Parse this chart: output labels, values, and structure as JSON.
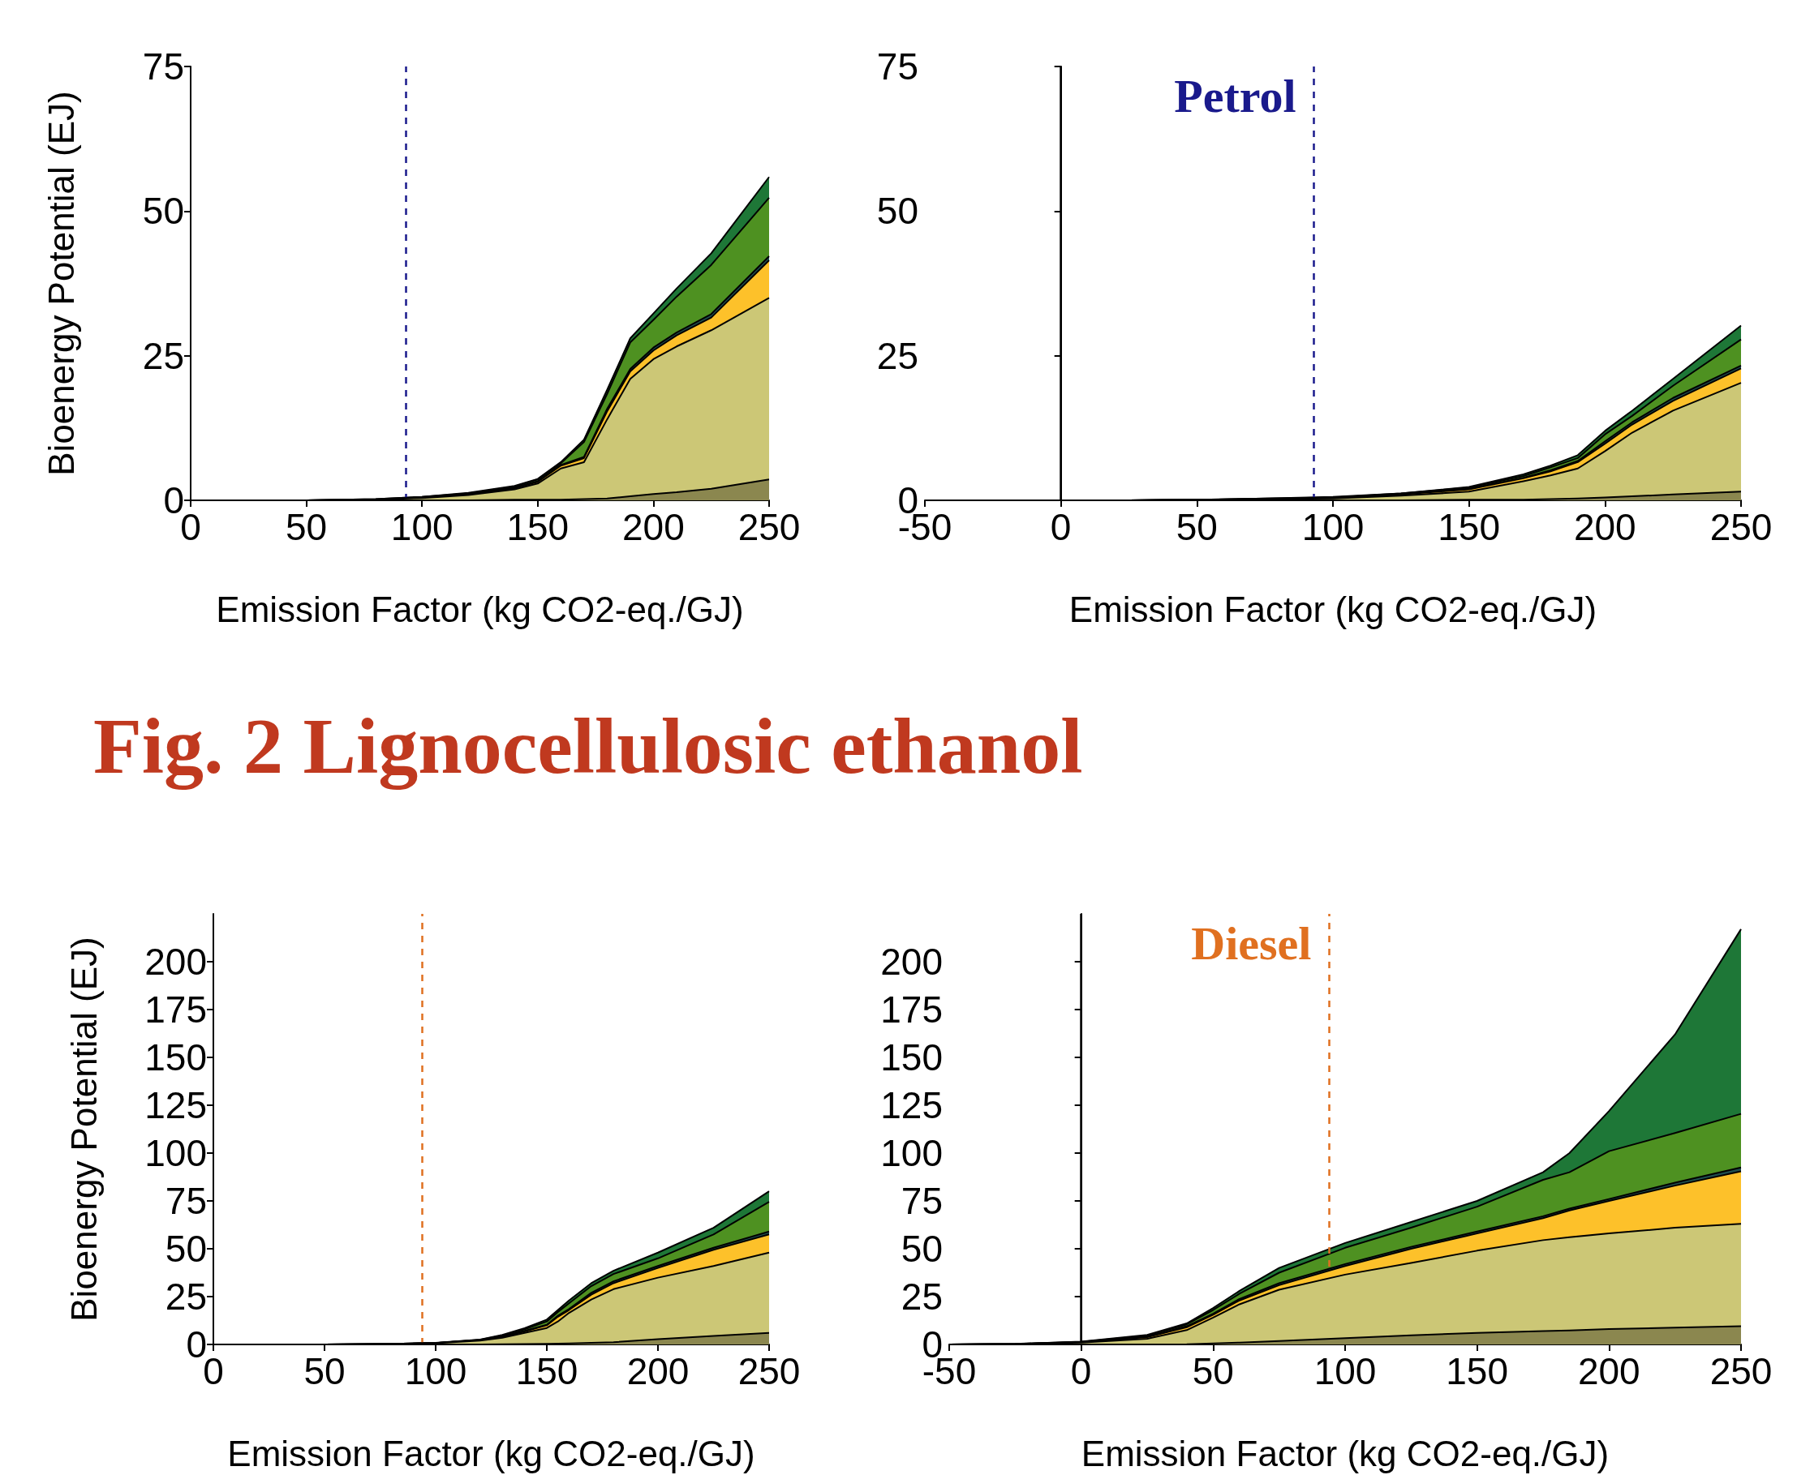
{
  "chart_data": [
    {
      "type": "area",
      "stacked": true,
      "xlabel": "Emission Factor (kg CO2-eq./GJ)",
      "ylabel": "Bioenergy Potential (EJ)",
      "xlim": [
        0,
        250
      ],
      "xticks": [
        0,
        50,
        100,
        150,
        200,
        250
      ],
      "ylim": [
        0,
        75
      ],
      "yticks": [
        0,
        25,
        50,
        75
      ],
      "x": [
        0,
        50,
        80,
        100,
        120,
        140,
        150,
        160,
        170,
        180,
        190,
        200,
        210,
        225,
        250
      ],
      "series": [
        {
          "color": "#8b874f",
          "values": [
            0,
            0,
            0,
            0,
            0,
            0.1,
            0.1,
            0.1,
            0.2,
            0.3,
            0.7,
            1.1,
            1.4,
            2.0,
            3.6
          ]
        },
        {
          "color": "#ccc776",
          "values": [
            0,
            0,
            0.1,
            0.4,
            0.9,
            1.8,
            2.8,
            5.4,
            6.4,
            13.7,
            20.3,
            23.3,
            25.2,
            27.4,
            31.4
          ]
        },
        {
          "color": "#fdc12a",
          "values": [
            0,
            0,
            0,
            0.1,
            0.1,
            0.2,
            0.3,
            0.5,
            0.7,
            1.4,
            1.3,
            1.5,
            1.9,
            2.2,
            6.5
          ]
        },
        {
          "color": "#1f4f4f",
          "values": [
            0,
            0,
            0,
            0,
            0.1,
            0.1,
            0.1,
            0.1,
            0.2,
            0.4,
            0.4,
            0.5,
            0.5,
            0.6,
            0.7
          ]
        },
        {
          "color": "#4e9121",
          "values": [
            0,
            0,
            0.1,
            0.1,
            0.1,
            0.2,
            0.3,
            0.3,
            2.6,
            2.6,
            4.6,
            4.8,
            6.2,
            8.5,
            10.1
          ]
        },
        {
          "color": "#1e7737",
          "values": [
            0,
            0,
            0,
            0,
            0.1,
            0.1,
            0.1,
            0.2,
            0.4,
            0.7,
            0.7,
            1.1,
            1.4,
            2.0,
            3.6
          ]
        }
      ],
      "ref_lines": [
        {
          "axis": "x",
          "value": 93,
          "color": "#1a1a8c",
          "line_style": "dashed"
        }
      ]
    },
    {
      "type": "area",
      "stacked": true,
      "xlabel": "Emission Factor (kg CO2-eq./GJ)",
      "xlim": [
        -50,
        250
      ],
      "xticks": [
        -50,
        0,
        50,
        100,
        150,
        200,
        250
      ],
      "ylim": [
        0,
        75
      ],
      "yticks": [
        0,
        25,
        50,
        75
      ],
      "x": [
        -50,
        0,
        25,
        50,
        75,
        100,
        125,
        150,
        170,
        180,
        190,
        200,
        210,
        225,
        250
      ],
      "series": [
        {
          "color": "#8b874f",
          "values": [
            0,
            0,
            0,
            0,
            0,
            0,
            0,
            0.1,
            0.1,
            0.2,
            0.3,
            0.5,
            0.7,
            1.0,
            1.5
          ]
        },
        {
          "color": "#ccc776",
          "values": [
            0,
            0,
            0,
            0.1,
            0.2,
            0.3,
            0.8,
            1.4,
            3.2,
            4.1,
            5.2,
            8.0,
            11.0,
            14.5,
            18.8
          ]
        },
        {
          "color": "#fdc12a",
          "values": [
            0,
            0,
            0,
            0,
            0,
            0.1,
            0.2,
            0.4,
            0.5,
            0.7,
            1.1,
            1.3,
            1.4,
            1.7,
            2.5
          ]
        },
        {
          "color": "#1f4f4f",
          "values": [
            0,
            0,
            0,
            0,
            0,
            0.1,
            0.1,
            0.1,
            0.1,
            0.2,
            0.2,
            0.4,
            0.4,
            0.5,
            0.5
          ]
        },
        {
          "color": "#4e9121",
          "values": [
            0,
            0,
            0,
            0,
            0.1,
            0,
            0.1,
            0.2,
            0.3,
            0.5,
            0.5,
            1.2,
            1.1,
            2.1,
            4.5
          ]
        },
        {
          "color": "#1e7737",
          "values": [
            0,
            0,
            0,
            0,
            0,
            0.1,
            0,
            0.1,
            0.3,
            0.3,
            0.5,
            0.6,
            0.9,
            1.2,
            2.4
          ]
        }
      ],
      "ref_lines": [
        {
          "axis": "x",
          "value": 0,
          "color": "#000000",
          "line_style": "solid"
        },
        {
          "axis": "x",
          "value": 93,
          "label": "Petrol",
          "color": "#1a1a8c",
          "line_style": "dashed"
        }
      ]
    },
    {
      "type": "area",
      "stacked": true,
      "title": "Fig. 2 Lignocellulosic ethanol",
      "xlabel": "Emission Factor (kg CO2-eq./GJ)",
      "ylabel": "Bioenergy Potential (EJ)",
      "xlim": [
        0,
        250
      ],
      "xticks": [
        0,
        50,
        100,
        150,
        200,
        250
      ],
      "ylim": [
        0,
        225
      ],
      "yticks": [
        0,
        25,
        50,
        75,
        100,
        125,
        150,
        175,
        200
      ],
      "x": [
        0,
        50,
        75,
        100,
        120,
        130,
        140,
        150,
        155,
        160,
        170,
        180,
        200,
        225,
        250
      ],
      "series": [
        {
          "color": "#8b874f",
          "values": [
            0,
            0,
            0,
            0,
            0,
            0.1,
            0.2,
            0.3,
            0.4,
            0.5,
            0.8,
            1.2,
            2.8,
            4.5,
            6
          ]
        },
        {
          "color": "#ccc776",
          "values": [
            0,
            0,
            0.2,
            0.6,
            2,
            3.4,
            5.8,
            8.3,
            11.6,
            16,
            22.7,
            27.7,
            32.1,
            36.5,
            42
          ]
        },
        {
          "color": "#fdc12a",
          "values": [
            0,
            0,
            0,
            0.1,
            0.2,
            0.5,
            0.8,
            1.4,
            2.5,
            1.5,
            2.5,
            3.1,
            5.1,
            8.5,
            9.5
          ]
        },
        {
          "color": "#1f4f4f",
          "values": [
            0,
            0,
            0,
            0,
            0.1,
            0.2,
            0.3,
            0.3,
            0.5,
            0.5,
            1,
            1,
            1,
            1,
            1.5
          ]
        },
        {
          "color": "#4e9121",
          "values": [
            0,
            0,
            0,
            0,
            0.1,
            0.5,
            0.8,
            1.7,
            2,
            3,
            3.5,
            3.8,
            4,
            7,
            15.5
          ]
        },
        {
          "color": "#1e7737",
          "values": [
            0,
            0,
            0,
            0.1,
            0.1,
            0.3,
            0.6,
            1,
            1,
            1.5,
            1.5,
            1.7,
            3,
            3.5,
            5.5
          ]
        }
      ],
      "ref_lines": [
        {
          "axis": "x",
          "value": 94,
          "color": "#e07020",
          "line_style": "dashed"
        }
      ]
    },
    {
      "type": "area",
      "stacked": true,
      "xlabel": "Emission Factor (kg CO2-eq./GJ)",
      "xlim": [
        -50,
        250
      ],
      "xticks": [
        -50,
        0,
        50,
        100,
        150,
        200,
        250
      ],
      "ylim": [
        0,
        225
      ],
      "yticks": [
        0,
        25,
        50,
        75,
        100,
        125,
        150,
        175,
        200
      ],
      "x": [
        -50,
        -25,
        0,
        25,
        40,
        50,
        60,
        75,
        100,
        125,
        150,
        175,
        185,
        200,
        225,
        250
      ],
      "series": [
        {
          "color": "#8b874f",
          "values": [
            0,
            0,
            0,
            0,
            0.1,
            0.5,
            1,
            1.8,
            3.3,
            4.8,
            6,
            7,
            7.3,
            8,
            8.8,
            9.5
          ]
        },
        {
          "color": "#ccc776",
          "values": [
            0,
            0.2,
            1,
            3,
            7.4,
            13.5,
            20,
            26.8,
            33.2,
            37.8,
            43,
            47.5,
            48.7,
            50,
            52.2,
            53.5
          ]
        },
        {
          "color": "#fdc12a",
          "values": [
            0,
            0,
            0.2,
            0.8,
            1.5,
            1.5,
            2,
            2.4,
            4.5,
            7.4,
            9,
            11.5,
            14,
            17,
            22,
            27.5
          ]
        },
        {
          "color": "#1f4f4f",
          "values": [
            0,
            0,
            0.1,
            0.2,
            0.5,
            0.5,
            0.8,
            1,
            1,
            1,
            1,
            1,
            1,
            1,
            1.5,
            2
          ]
        },
        {
          "color": "#4e9121",
          "values": [
            0,
            0.1,
            0.1,
            0.6,
            1,
            2,
            2.7,
            5.5,
            8.5,
            10,
            13,
            19,
            19,
            25,
            26,
            28
          ]
        },
        {
          "color": "#1e7737",
          "values": [
            0,
            0,
            0.1,
            0.4,
            0.5,
            1,
            1.5,
            2.5,
            2.5,
            3,
            3,
            4,
            10,
            21,
            51.5,
            96.5
          ]
        }
      ],
      "ref_lines": [
        {
          "axis": "x",
          "value": 0,
          "color": "#000000",
          "line_style": "solid"
        },
        {
          "axis": "x",
          "value": 94,
          "label": "Diesel",
          "color": "#e07020",
          "line_style": "dashed"
        }
      ]
    }
  ]
}
